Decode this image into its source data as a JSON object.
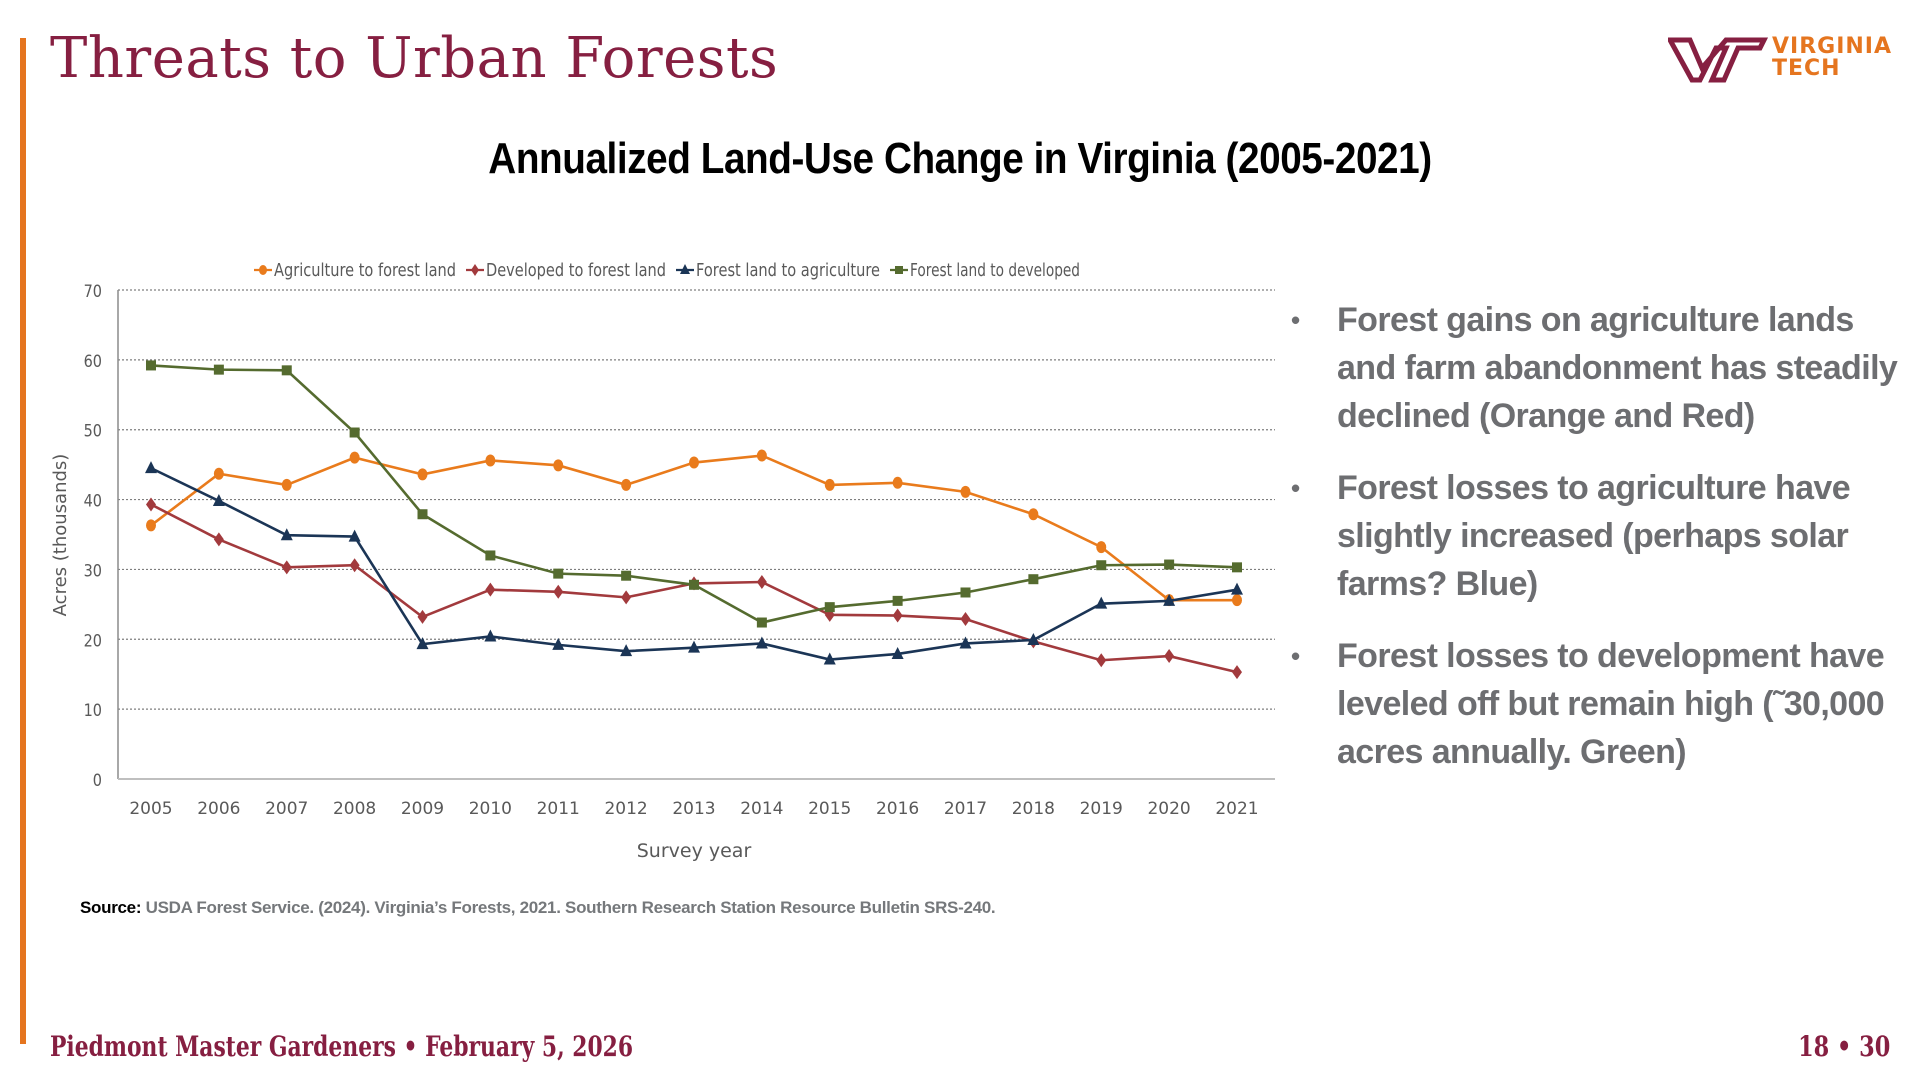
{
  "slide": {
    "title": "Threats to Urban Forests",
    "logo": {
      "icon": "vt-monogram-icon",
      "line1": "VIRGINIA",
      "line2": "TECH",
      "trademark": "™"
    },
    "footer_left": "Piedmont Master Gardeners • February 5, 2026",
    "footer_right": "18 • 30",
    "source_label": "Source:",
    "source_text": "USDA Forest Service. (2024). Virginia’s Forests, 2021. Southern Research Station Resource Bulletin SRS-240.",
    "bullets": [
      "Forest gains on agriculture lands and farm abandonment has steadily declined (Orange and Red)",
      "Forest losses to agriculture have slightly increased (perhaps solar farms? Blue)",
      "Forest losses to development have leveled off but remain high (˜30,000 acres annually. Green)"
    ],
    "colors": {
      "brand_maroon": "#861F41",
      "brand_orange": "#E5751F",
      "bullet_gray": "#6D6E71"
    }
  },
  "chart_data": {
    "type": "line",
    "title": "Annualized Land-Use Change in Virginia (2005-2021)",
    "xlabel": "Survey year",
    "ylabel": "Acres (thousands)",
    "ylim": [
      0,
      70
    ],
    "yticks": [
      0,
      10,
      20,
      30,
      40,
      50,
      60,
      70
    ],
    "grid": true,
    "legend_position": "top",
    "x": [
      "2005",
      "2006",
      "2007",
      "2008",
      "2009",
      "2010",
      "2011",
      "2012",
      "2013",
      "2014",
      "2015",
      "2016",
      "2017",
      "2018",
      "2019",
      "2020",
      "2021"
    ],
    "series": [
      {
        "name": "Agriculture to forest land",
        "color": "#E97B1C",
        "marker": "circle",
        "values": [
          36.3,
          43.7,
          42.1,
          46.0,
          43.6,
          45.6,
          44.9,
          42.1,
          45.3,
          46.3,
          42.1,
          42.4,
          41.1,
          37.9,
          33.2,
          25.6,
          25.6
        ]
      },
      {
        "name": "Developed to forest land",
        "color": "#A23A3D",
        "marker": "diamond",
        "values": [
          39.3,
          34.3,
          30.3,
          30.6,
          23.2,
          27.1,
          26.8,
          26.0,
          28.0,
          28.2,
          23.5,
          23.4,
          22.9,
          19.7,
          17.0,
          17.6,
          15.3
        ]
      },
      {
        "name": "Forest land to agriculture",
        "color": "#1B3556",
        "marker": "triangle",
        "values": [
          44.5,
          39.8,
          34.9,
          34.7,
          19.3,
          20.4,
          19.2,
          18.3,
          18.8,
          19.4,
          17.1,
          17.9,
          19.4,
          19.9,
          25.1,
          25.5,
          27.1
        ]
      },
      {
        "name": "Forest land to developed",
        "color": "#556B2F",
        "marker": "square",
        "values": [
          59.2,
          58.6,
          58.5,
          49.6,
          37.9,
          32.0,
          29.4,
          29.1,
          27.8,
          22.4,
          24.6,
          25.5,
          26.7,
          28.6,
          30.6,
          30.7,
          30.3
        ]
      }
    ]
  }
}
